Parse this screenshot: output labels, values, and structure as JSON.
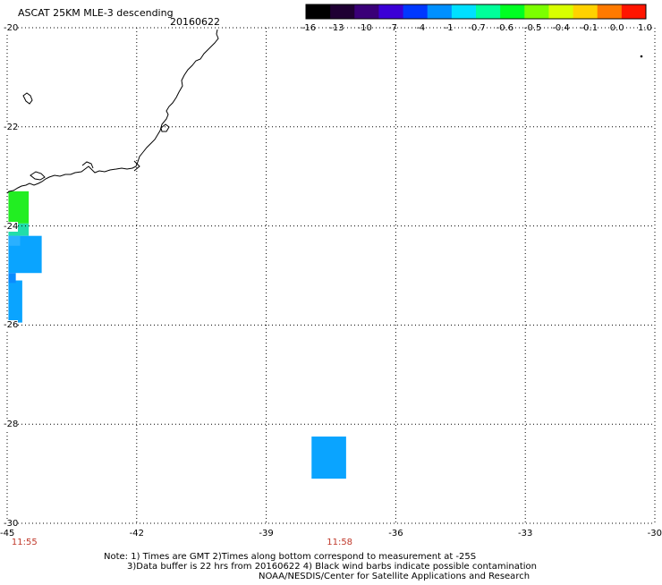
{
  "header": {
    "title": "ASCAT 25KM MLE-3 descending",
    "date": "20160622"
  },
  "colorbar": {
    "labels": [
      "-16",
      "-13",
      "-10",
      "-7",
      "-4",
      "-1",
      "-0.7",
      "-0.6",
      "-0.5",
      "-0.4",
      "-0.1",
      "0.0",
      "1.0"
    ],
    "colors": [
      "#000000",
      "#1f0033",
      "#3a0078",
      "#3b00d6",
      "#0038ff",
      "#0090ff",
      "#00e0ff",
      "#00ff9a",
      "#00ff22",
      "#7cff00",
      "#d8ff00",
      "#ffd200",
      "#ff7a00",
      "#ff1500"
    ]
  },
  "axes": {
    "lon_labels": [
      "-45",
      "-42",
      "-39",
      "-36",
      "-33",
      "-30"
    ],
    "lon_values": [
      -45,
      -42,
      -39,
      -36,
      -33,
      -30
    ],
    "lat_labels": [
      "-20",
      "-22",
      "-24",
      "-26",
      "-28",
      "-30"
    ],
    "lat_values": [
      -20,
      -22,
      -24,
      -26,
      -28,
      -30
    ],
    "lon_range": [
      -45,
      -30
    ],
    "lat_range": [
      -20,
      -30
    ],
    "grid": "dotted"
  },
  "times": [
    {
      "label": "11:55",
      "lon": -44.6
    },
    {
      "label": "11:58",
      "lon": -37.3
    }
  ],
  "data_cells": [
    {
      "lon0": -44.97,
      "lon1": -44.5,
      "lat0": -23.3,
      "lat1": -23.95,
      "color": "#22ee22"
    },
    {
      "lon0": -44.97,
      "lon1": -44.5,
      "lat0": -23.95,
      "lat1": -24.2,
      "color": "#22ddaa"
    },
    {
      "lon0": -44.97,
      "lon1": -44.2,
      "lat0": -24.2,
      "lat1": -24.95,
      "color": "#0aa4ff"
    },
    {
      "lon0": -44.97,
      "lon1": -44.7,
      "lat0": -24.2,
      "lat1": -24.4,
      "color": "#2ab0ff"
    },
    {
      "lon0": -44.97,
      "lon1": -44.65,
      "lat0": -25.1,
      "lat1": -25.95,
      "color": "#0aa4ff"
    },
    {
      "lon0": -44.97,
      "lon1": -44.8,
      "lat0": -24.95,
      "lat1": -25.15,
      "color": "#0a8cff"
    },
    {
      "lon0": -37.95,
      "lon1": -37.15,
      "lat0": -28.25,
      "lat1": -29.1,
      "color": "#0aa4ff"
    }
  ],
  "notes": [
    "Note: 1) Times are GMT 2)Times along bottom correspond to measurement at -25S",
    "3)Data buffer is 22 hrs from 20160622 4) Black wind barbs indicate possible contamination",
    "NOAA/NESDIS/Center for Satellite Applications and Research"
  ]
}
